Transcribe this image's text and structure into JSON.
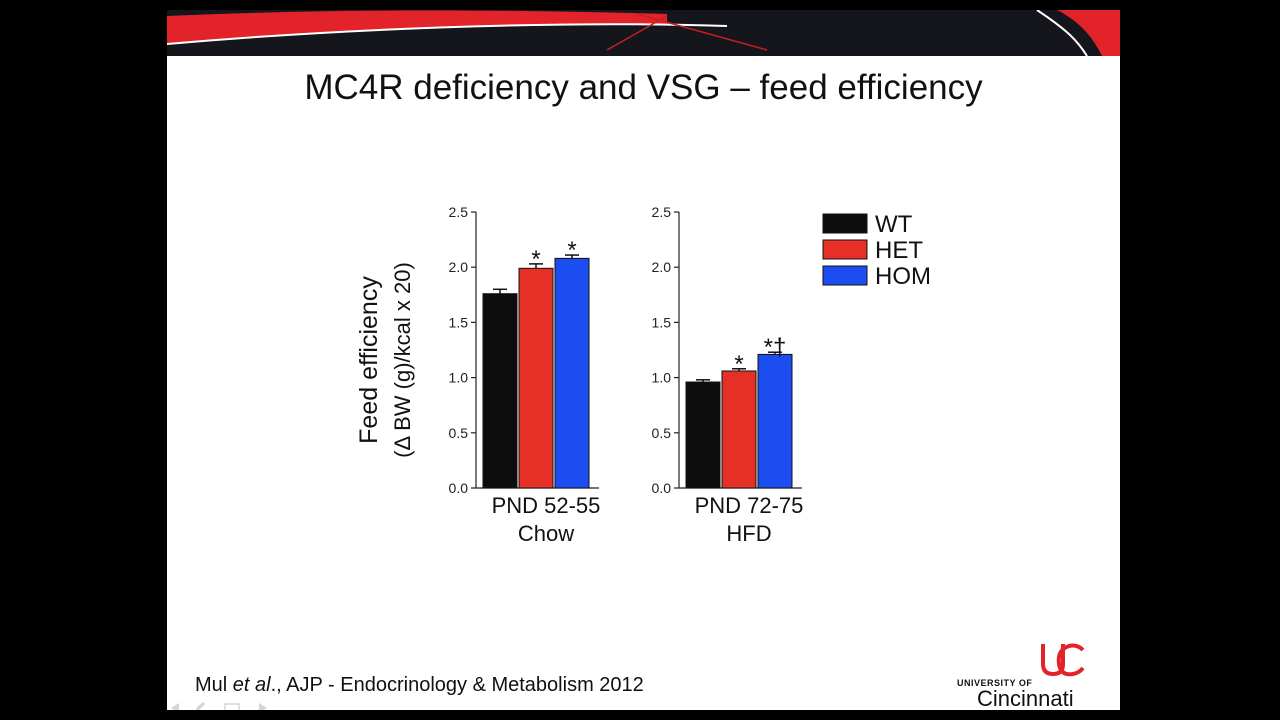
{
  "slide": {
    "title": "MC4R deficiency and VSG – feed efficiency",
    "citation_prefix": "Mul ",
    "citation_italic": "et al",
    "citation_suffix": "., AJP - Endocrinology & Metabolism 2012",
    "logo_university": "UNIVERSITY OF",
    "logo_city": "Cincinnati",
    "colors": {
      "banner_dark": "#15161c",
      "banner_red": "#e3232a"
    }
  },
  "chart_data": {
    "type": "bar",
    "title": "",
    "ylabel_line1": "Feed efficiency",
    "ylabel_line2": "(Δ BW (g)/kcal x 20)",
    "ylim": [
      0,
      2.5
    ],
    "yticks": [
      "0.0",
      "0.5",
      "1.0",
      "1.5",
      "2.0",
      "2.5"
    ],
    "legend": {
      "position": "top-right",
      "entries": [
        "WT",
        "HET",
        "HOM"
      ]
    },
    "series_colors": [
      "#0d0d0d",
      "#e63027",
      "#1b4df0"
    ],
    "panels": [
      {
        "xlabel_line1": "PND 52-55",
        "xlabel_line2": "Chow",
        "values": [
          1.76,
          1.99,
          2.08
        ],
        "errors": [
          0.04,
          0.04,
          0.03
        ],
        "markers": [
          "",
          "*",
          "*"
        ]
      },
      {
        "xlabel_line1": "PND 72-75",
        "xlabel_line2": "HFD",
        "values": [
          0.96,
          1.06,
          1.21
        ],
        "errors": [
          0.02,
          0.02,
          0.02
        ],
        "markers": [
          "",
          "*",
          "*†"
        ]
      }
    ]
  }
}
